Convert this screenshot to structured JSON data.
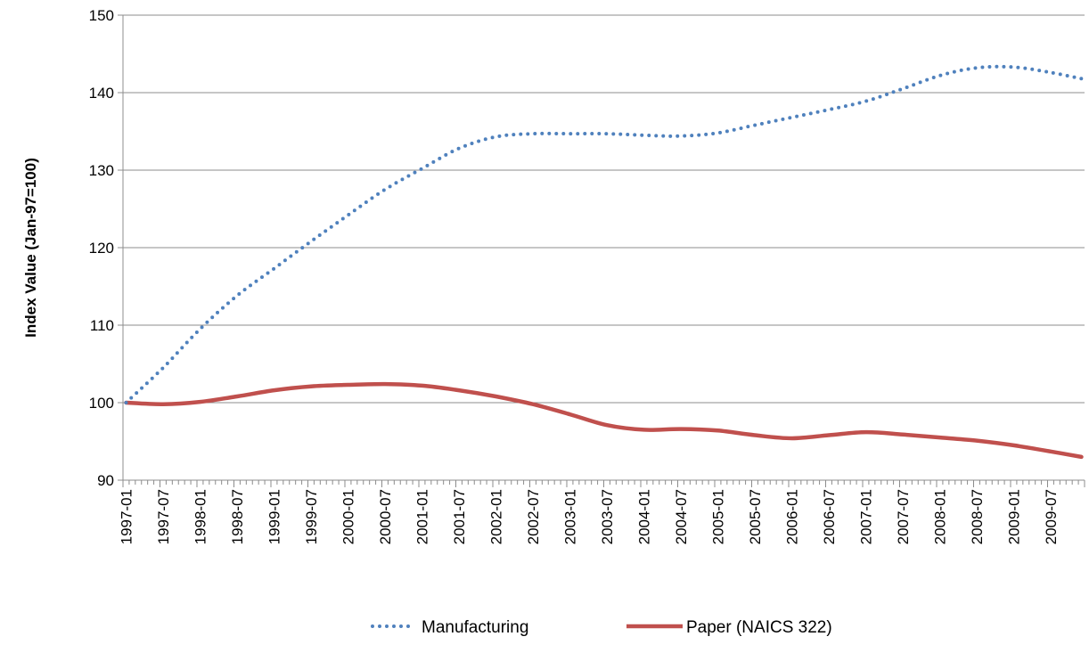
{
  "chart_data": {
    "type": "line",
    "title": "",
    "xlabel": "",
    "ylabel": "Index Value (Jan-97=100)",
    "ylim": [
      90,
      150
    ],
    "yticks": [
      90,
      100,
      110,
      120,
      130,
      140,
      150
    ],
    "grid": "horizontal",
    "legend_position": "bottom",
    "x_tick_labels": [
      "1997-01",
      "1997-07",
      "1998-01",
      "1998-07",
      "1999-01",
      "1999-07",
      "2000-01",
      "2000-07",
      "2001-01",
      "2001-07",
      "2002-01",
      "2002-07",
      "2003-01",
      "2003-07",
      "2004-01",
      "2004-07",
      "2005-01",
      "2005-07",
      "2006-01",
      "2006-07",
      "2007-01",
      "2007-07",
      "2008-01",
      "2008-07",
      "2009-01",
      "2009-07"
    ],
    "x": [
      "1997-01",
      "1997-07",
      "1998-01",
      "1998-07",
      "1999-01",
      "1999-07",
      "2000-01",
      "2000-07",
      "2001-01",
      "2001-07",
      "2002-01",
      "2002-07",
      "2003-01",
      "2003-07",
      "2004-01",
      "2004-07",
      "2005-01",
      "2005-07",
      "2006-01",
      "2006-07",
      "2007-01",
      "2007-07",
      "2008-01",
      "2008-07",
      "2009-01",
      "2009-07",
      "2009-12"
    ],
    "series": [
      {
        "name": "Manufacturing",
        "color": "#4f81bd",
        "style": "dotted",
        "values": [
          100.0,
          104.5,
          109.5,
          113.8,
          117.3,
          120.8,
          124.2,
          127.5,
          130.2,
          132.8,
          134.3,
          134.7,
          134.7,
          134.7,
          134.5,
          134.4,
          134.8,
          135.8,
          136.8,
          137.8,
          138.9,
          140.5,
          142.2,
          143.2,
          143.3,
          142.6,
          141.8
        ]
      },
      {
        "name": "Paper (NAICS 322)",
        "color": "#c0504d",
        "style": "solid",
        "values": [
          100.0,
          99.8,
          100.1,
          100.8,
          101.6,
          102.1,
          102.3,
          102.4,
          102.2,
          101.6,
          100.8,
          99.8,
          98.5,
          97.1,
          96.5,
          96.6,
          96.4,
          95.8,
          95.4,
          95.8,
          96.2,
          95.9,
          95.5,
          95.1,
          94.5,
          93.7,
          93.0
        ]
      }
    ]
  }
}
